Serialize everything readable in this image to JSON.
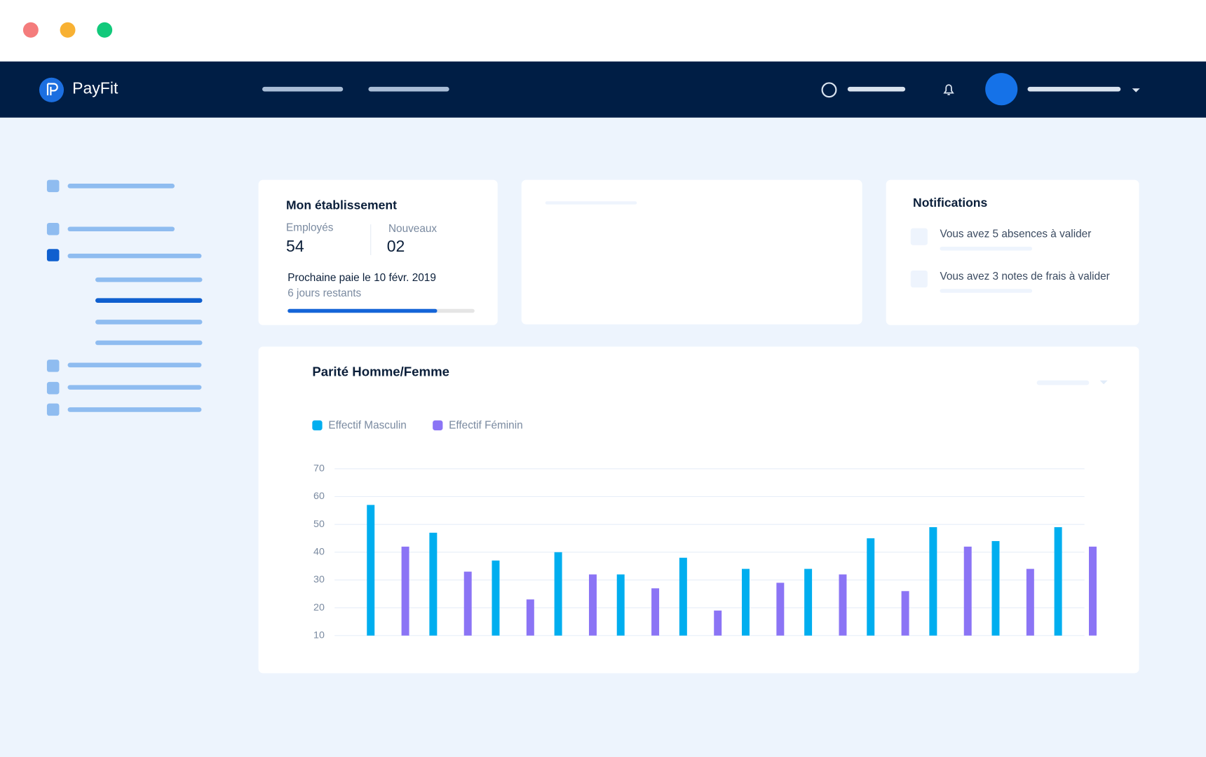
{
  "app": {
    "brand": "PayFit"
  },
  "establishment": {
    "title": "Mon établissement",
    "employees_label": "Employés",
    "employees": 54,
    "new_label": "Nouveaux",
    "new": "02",
    "next_pay": "Prochaine paie le 10 févr. 2019",
    "remaining": "6 jours restants",
    "progress": 80
  },
  "notifications": {
    "title": "Notifications",
    "items": [
      "Vous avez 5 absences à valider",
      "Vous avez 3 notes de frais à valider"
    ]
  },
  "chart_data": {
    "type": "bar",
    "title": "Parité Homme/Femme",
    "categories": [
      null,
      null,
      null,
      null,
      null,
      null,
      null,
      null,
      null,
      null,
      null,
      null
    ],
    "series": [
      {
        "name": "Effectif Masculin",
        "color": "#00aeef",
        "values": [
          57,
          47,
          37,
          40,
          32,
          38,
          34,
          34,
          45,
          49,
          44,
          49
        ]
      },
      {
        "name": "Effectif Féminin",
        "color": "#8b74f5",
        "values": [
          42,
          33,
          23,
          32,
          27,
          19,
          29,
          32,
          26,
          42,
          34,
          42
        ]
      }
    ],
    "ylim": [
      10,
      70
    ],
    "yticks": [
      10,
      20,
      30,
      40,
      50,
      60,
      70
    ],
    "grid": true
  }
}
